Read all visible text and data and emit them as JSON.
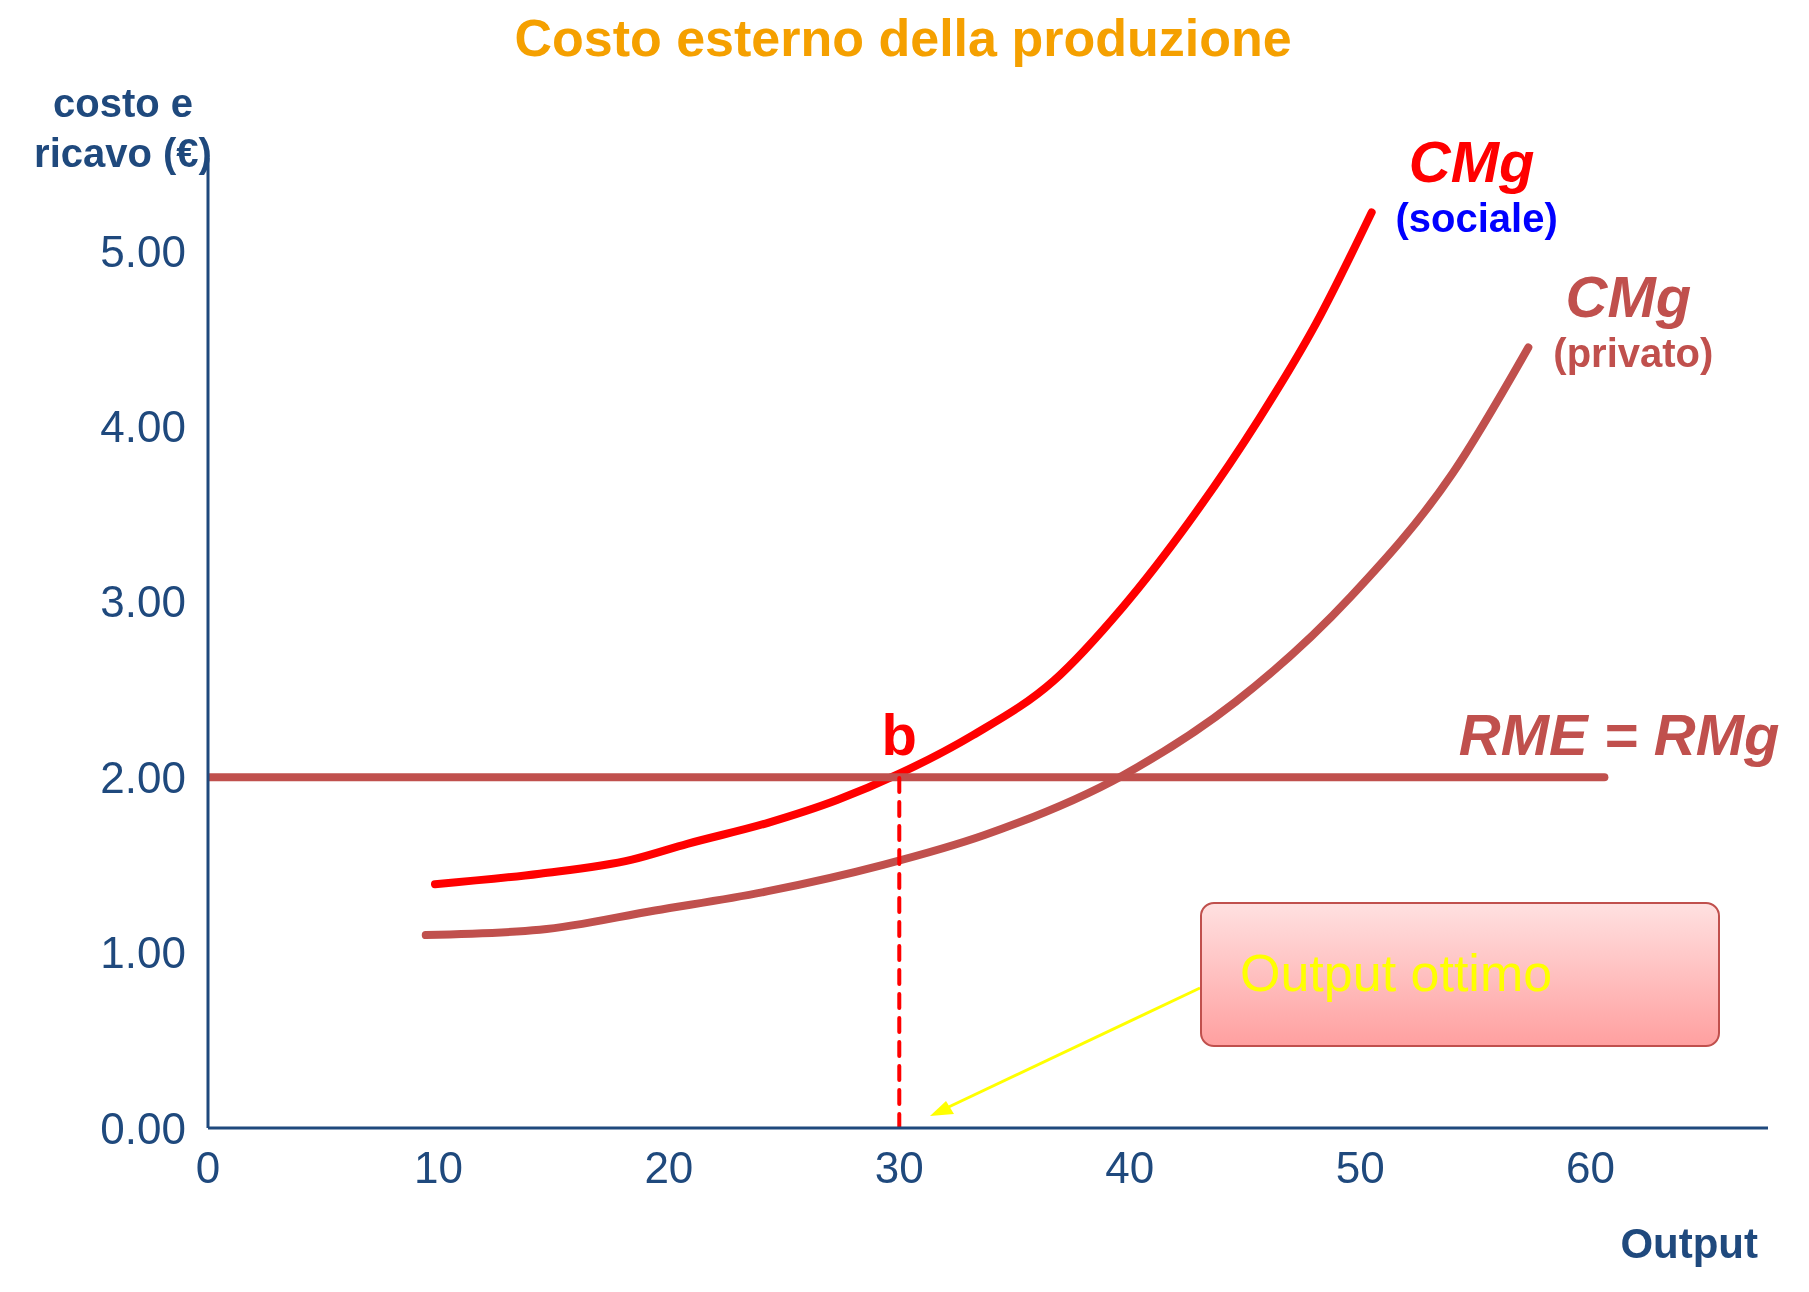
{
  "chart_data": {
    "type": "line",
    "title": "Costo esterno della produzione",
    "xlabel": "Output",
    "ylabel": "costo e ricavo (€)",
    "xlim": [
      0,
      67.7
    ],
    "xticks": [
      0,
      10,
      20,
      30,
      40,
      50,
      60
    ],
    "ylim": [
      0,
      5.53
    ],
    "yticks": [
      {
        "value": 0,
        "label": "0.00"
      },
      {
        "value": 1,
        "label": "1.00"
      },
      {
        "value": 2,
        "label": "2.00"
      },
      {
        "value": 3,
        "label": "3.00"
      },
      {
        "value": 4,
        "label": "4.00"
      },
      {
        "value": 5,
        "label": "5.00"
      }
    ],
    "marker": "none",
    "series": [
      {
        "name": "CMg (sociale)",
        "color": "#ff0000",
        "x": [
          9.85,
          14.4,
          18.4,
          20.8,
          24.3,
          27.3,
          30,
          33.2,
          36.7,
          39.7,
          42.6,
          45.6,
          48.1,
          50.5
        ],
        "values": [
          1.39,
          1.45,
          1.53,
          1.62,
          1.74,
          1.87,
          2.02,
          2.24,
          2.55,
          2.97,
          3.46,
          4.04,
          4.59,
          5.22
        ]
      },
      {
        "name": "CMg (privato)",
        "color": "#c0504d",
        "x": [
          9.45,
          14.4,
          19.4,
          24.3,
          29.3,
          33.7,
          39.7,
          44.6,
          49.6,
          54,
          57.3
        ],
        "values": [
          1.1,
          1.13,
          1.24,
          1.35,
          1.5,
          1.67,
          2.01,
          2.43,
          3.03,
          3.73,
          4.45
        ]
      },
      {
        "name": "RME = RMg",
        "color": "#c0504d",
        "x": [
          0,
          60.6
        ],
        "values": [
          2,
          2
        ]
      },
      {
        "color": "#ff0000",
        "x": [
          30,
          30
        ],
        "values": [
          0,
          2
        ],
        "line_style": "dashed"
      }
    ],
    "annotations": [
      {
        "text": "b",
        "x": 30,
        "y": 2
      },
      "Output ottimo"
    ]
  }
}
